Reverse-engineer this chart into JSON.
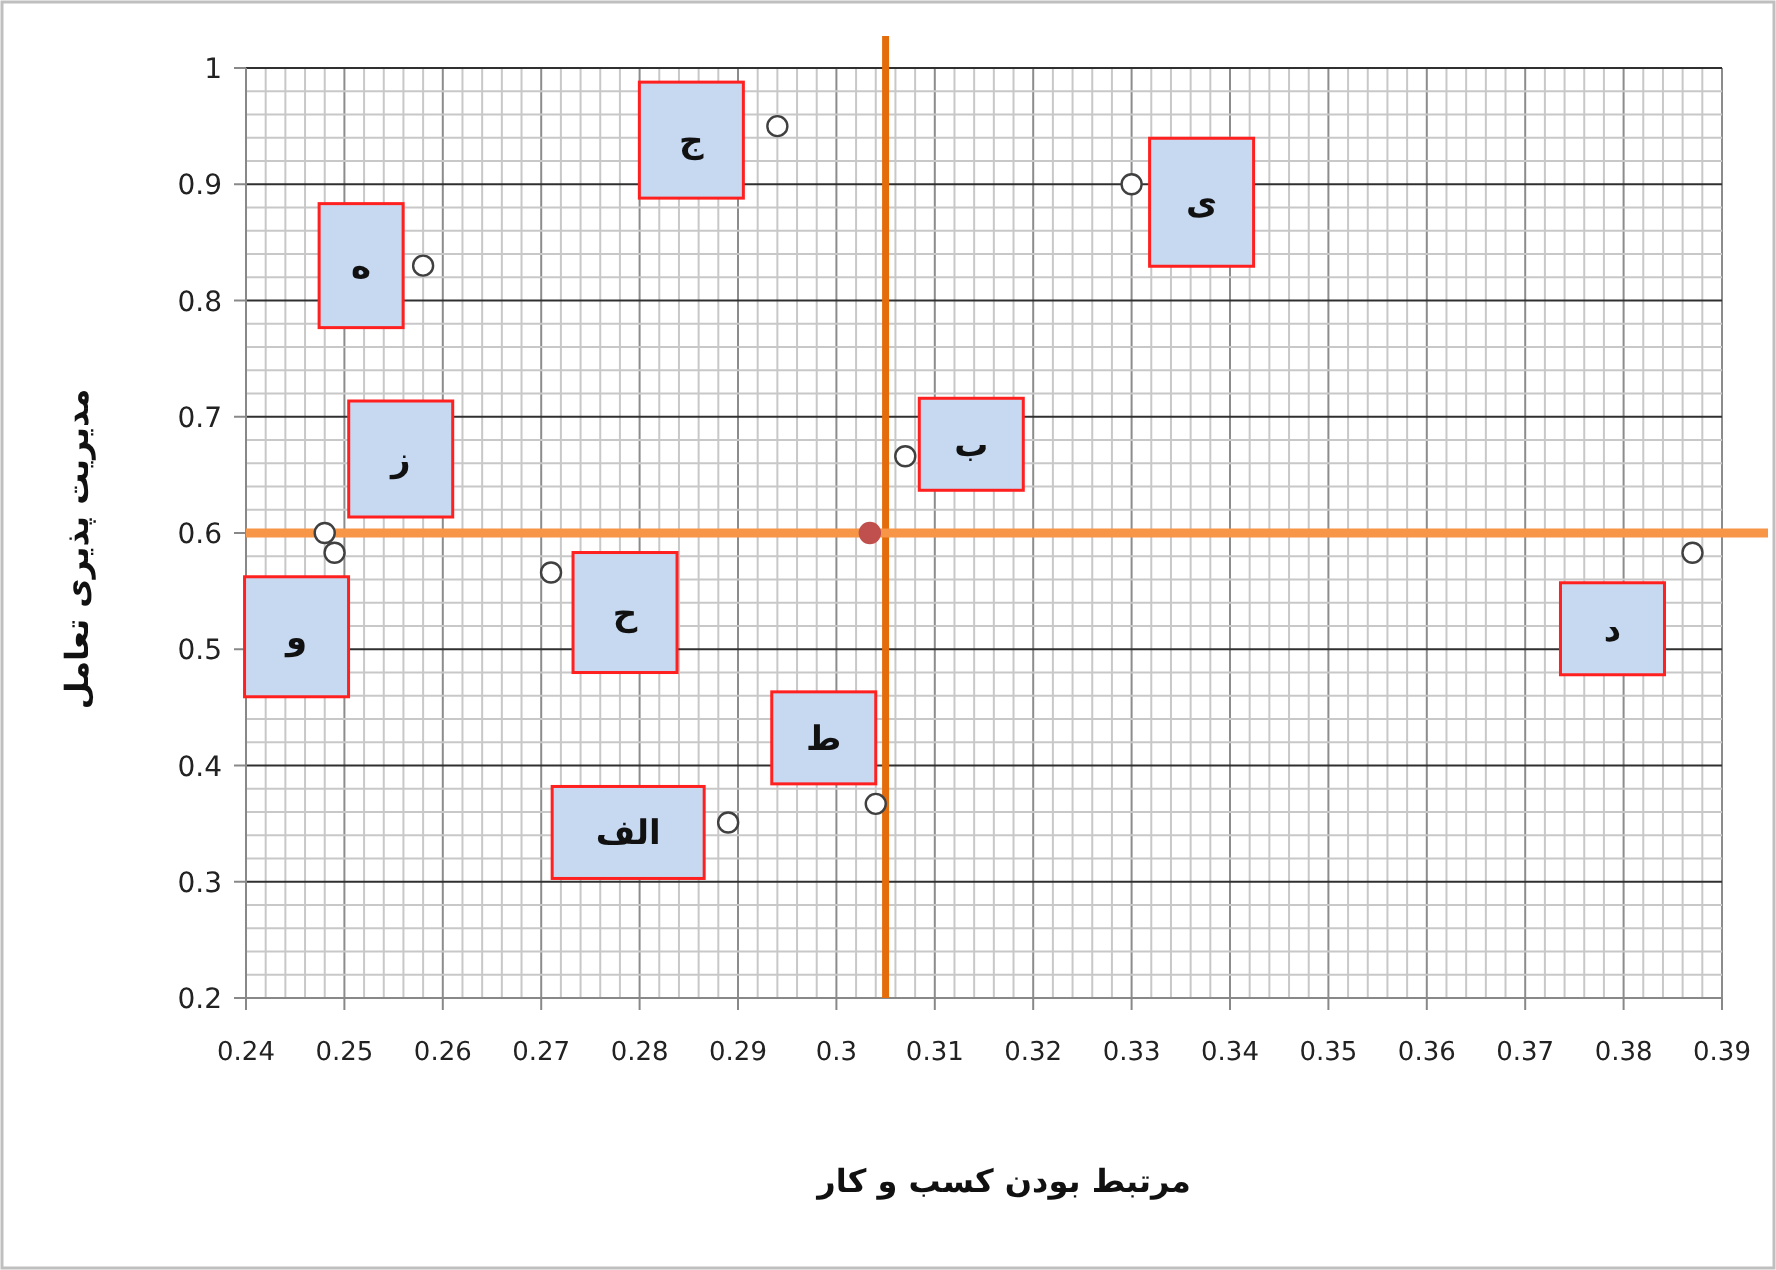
{
  "chart_data": {
    "type": "scatter",
    "xlabel": "مرتبط بودن کسب و کار",
    "ylabel": "مدیریت پذیری تعامل",
    "xlim": [
      0.24,
      0.39
    ],
    "ylim": [
      0.2,
      1
    ],
    "xticks": [
      0.24,
      0.25,
      0.26,
      0.27,
      0.28,
      0.29,
      0.3,
      0.31,
      0.32,
      0.33,
      0.34,
      0.35,
      0.36,
      0.37,
      0.38,
      0.39
    ],
    "yticks": [
      0.2,
      0.3,
      0.4,
      0.5,
      0.6,
      0.7,
      0.8,
      0.9,
      1
    ],
    "grid": true,
    "marker": "circle",
    "series": [
      {
        "color": "#404040",
        "x": [
          0.294,
          0.258,
          0.33,
          0.307,
          0.248,
          0.249,
          0.271,
          0.289,
          0.304,
          0.387
        ],
        "values": [
          0.95,
          0.83,
          0.9,
          0.666,
          0.6,
          0.583,
          0.566,
          0.351,
          0.367,
          0.583
        ]
      },
      {
        "color": "#c0504d",
        "x": [
          0.3034
        ],
        "values": [
          0.6
        ]
      }
    ],
    "ref_lines": [
      {
        "axis": "x",
        "value": 0.305,
        "color": "#e46c0a"
      },
      {
        "axis": "y",
        "value": 0.6,
        "color": "#f79646"
      }
    ],
    "annotations": [
      {
        "text": "ج",
        "x": 0.294,
        "y": 0.95
      },
      {
        "text": "ه",
        "x": 0.258,
        "y": 0.83
      },
      {
        "text": "ی",
        "x": 0.33,
        "y": 0.9
      },
      {
        "text": "ب",
        "x": 0.307,
        "y": 0.666
      },
      {
        "text": "ز",
        "x": 0.248,
        "y": 0.6
      },
      {
        "text": "و",
        "x": 0.249,
        "y": 0.583
      },
      {
        "text": "ح",
        "x": 0.271,
        "y": 0.566
      },
      {
        "text": "الف",
        "x": 0.289,
        "y": 0.351
      },
      {
        "text": "ط",
        "x": 0.304,
        "y": 0.367
      },
      {
        "text": "د",
        "x": 0.387,
        "y": 0.583
      }
    ]
  }
}
